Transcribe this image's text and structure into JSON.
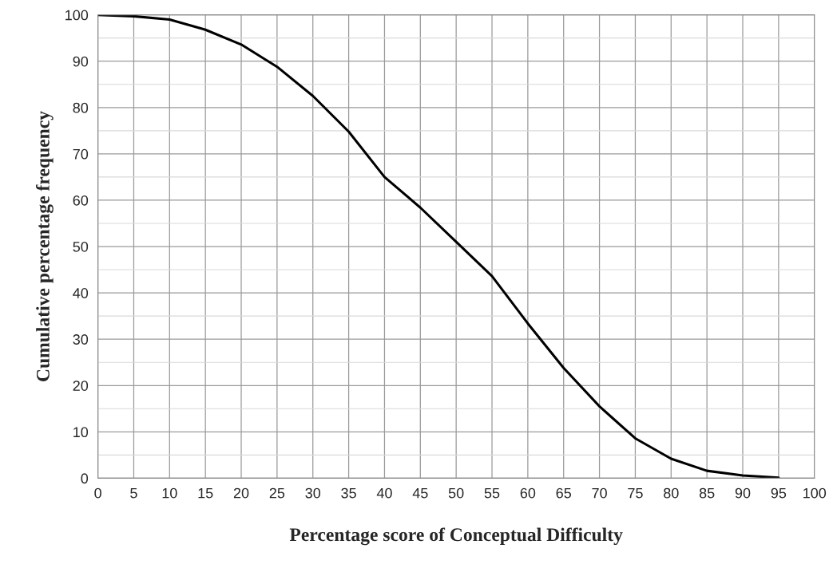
{
  "chart_data": {
    "type": "line",
    "xlabel": "Percentage score of Conceptual Difficulty",
    "ylabel": "Cumulative percentage frequency",
    "x": [
      0,
      5,
      10,
      15,
      20,
      25,
      30,
      35,
      40,
      45,
      50,
      55,
      60,
      65,
      70,
      75,
      80,
      85,
      90,
      95
    ],
    "series": [
      {
        "color": "#000000",
        "values": [
          100,
          99.7,
          99,
          96.8,
          93.6,
          88.8,
          82.5,
          74.8,
          65,
          58.4,
          51,
          43.6,
          33.4,
          23.8,
          15.5,
          8.6,
          4.2,
          1.6,
          0.6,
          0.1
        ]
      }
    ],
    "xlim": [
      0,
      100
    ],
    "xticks": [
      0,
      5,
      10,
      15,
      20,
      25,
      30,
      35,
      40,
      45,
      50,
      55,
      60,
      65,
      70,
      75,
      80,
      85,
      90,
      95,
      100
    ],
    "ylim": [
      0,
      100
    ],
    "yticks": [
      0,
      10,
      20,
      30,
      40,
      50,
      60,
      70,
      80,
      90,
      100
    ],
    "grid": true,
    "marker": "none",
    "line_style": "solid"
  }
}
